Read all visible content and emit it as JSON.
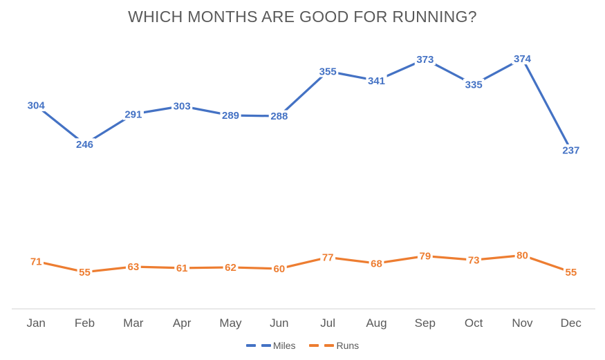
{
  "title": "WHICH MONTHS ARE GOOD FOR RUNNING?",
  "chart_data": {
    "type": "line",
    "title": "WHICH MONTHS ARE GOOD FOR RUNNING?",
    "categories": [
      "Jan",
      "Feb",
      "Mar",
      "Apr",
      "May",
      "Jun",
      "Jul",
      "Aug",
      "Sep",
      "Oct",
      "Nov",
      "Dec"
    ],
    "series": [
      {
        "name": "Miles",
        "color": "#4472C4",
        "values": [
          304,
          246,
          291,
          303,
          289,
          288,
          355,
          341,
          373,
          335,
          374,
          237
        ]
      },
      {
        "name": "Runs",
        "color": "#ED7D31",
        "values": [
          71,
          55,
          63,
          61,
          62,
          60,
          77,
          68,
          79,
          73,
          80,
          55
        ]
      }
    ],
    "ylim": [
      0,
      400
    ],
    "grid": false,
    "data_labels": "center",
    "legend_position": "bottom",
    "axis_line_color": "#D9D9D9",
    "title_color": "#595959",
    "axis_label_color": "#595959",
    "background": "#FFFFFF"
  }
}
